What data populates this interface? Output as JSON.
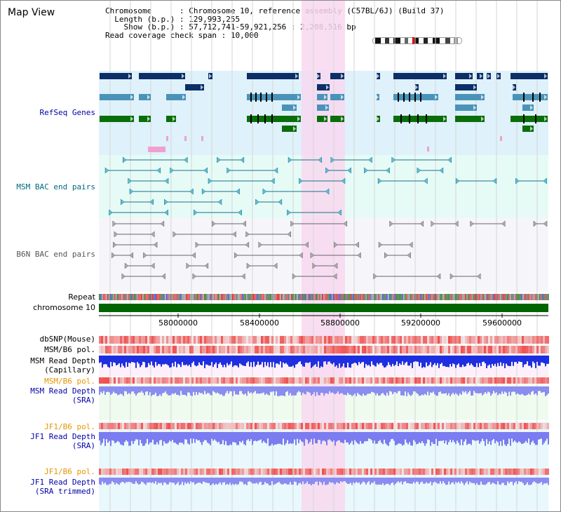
{
  "view_title": "Map View",
  "info": {
    "chromosome_label": "Chromosome",
    "chromosome_value": "Chromosome 10, reference assembly (C57BL/6J) (Build 37)",
    "length_label": "Length (b.p.)",
    "length_value": "129,993,255",
    "show_label": "Show (b.p.)",
    "show_value": "57,712,741-59,921,256 : 2,208,516 bp",
    "span_label": "Read coverage check span",
    "span_value": "10,000"
  },
  "tracks": {
    "refseq": "RefSeq Genes",
    "msm_bac": "MSM BAC end pairs",
    "b6n_bac": "B6N BAC end pairs",
    "repeat": "Repeat",
    "chromosome": "chromosome 10"
  },
  "ruler": {
    "ticks": [
      "58000000",
      "58400000",
      "58800000",
      "59200000",
      "59600000"
    ]
  },
  "data_tracks": [
    {
      "line1": "dbSNP(Mouse)",
      "line2": "",
      "color": "#000000"
    },
    {
      "line1": "MSM/B6 pol.",
      "line2": "",
      "color": "#000000"
    },
    {
      "line1": "MSM Read Depth",
      "line2": "(Capillary)",
      "color": "#000000"
    },
    {
      "line1": "MSM/B6 pol.",
      "line2": "",
      "color": "#e69500"
    },
    {
      "line1": "MSM Read Depth",
      "line2": "(SRA)",
      "color": "#0000aa"
    },
    {
      "line1": "JF1/B6 pol.",
      "line2": "",
      "color": "#e69500"
    },
    {
      "line1": "JF1 Read Depth",
      "line2": "(SRA)",
      "color": "#0000aa"
    },
    {
      "line1": "JF1/B6 pol.",
      "line2": "",
      "color": "#e69500"
    },
    {
      "line1": "JF1 Read Depth",
      "line2": "(SRA trimmed)",
      "color": "#0000aa"
    }
  ],
  "colors": {
    "refseq_bg": "#dff1fa",
    "msm_bg": "#e6fbf6",
    "highlight": "#f8d8f0",
    "gene_navy": "#0b2f66",
    "gene_blue": "#4a93b8",
    "gene_green": "#0a6e0a",
    "chromosome_bar": "#006400"
  }
}
